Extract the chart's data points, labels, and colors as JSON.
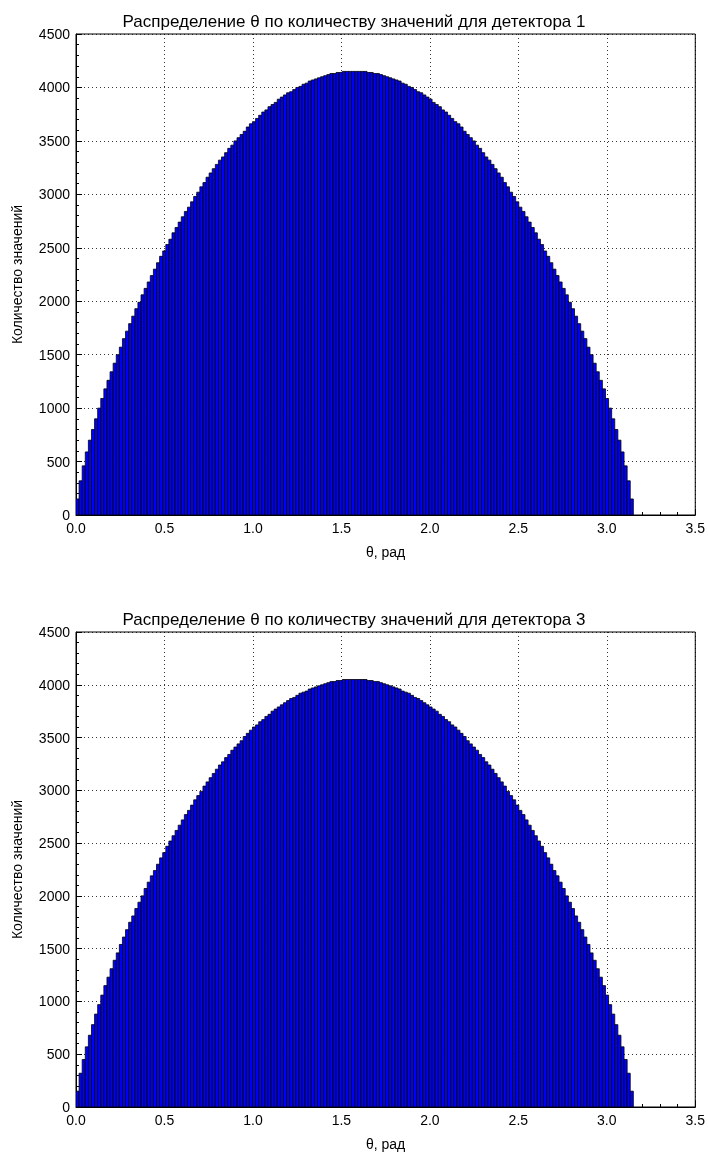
{
  "chart_data": [
    {
      "type": "histogram",
      "title": "Распределение θ по количеству значений для детектора 1",
      "xlabel": "θ, рад",
      "ylabel": "Количество значений",
      "color": "#0000ff",
      "bins": [
        0,
        0.0175,
        0.035,
        0.0525,
        0.07,
        0.0875,
        0.105,
        0.1225,
        0.14,
        0.1575,
        0.175,
        0.1925,
        0.21,
        0.2275,
        0.245,
        0.2625,
        0.28,
        0.2975,
        0.315,
        0.3325,
        0.35,
        0.3675,
        0.385,
        0.4025,
        0.42,
        0.4375,
        0.455,
        0.4725,
        0.49,
        0.5075,
        0.525,
        0.5425,
        0.56,
        0.5775,
        0.595,
        0.6125,
        0.63,
        0.6475,
        0.665,
        0.6825,
        0.7,
        0.7175,
        0.735,
        0.7525,
        0.77,
        0.7875,
        0.805,
        0.8225,
        0.84,
        0.8575,
        0.875,
        0.8925,
        0.91,
        0.9275,
        0.945,
        0.9625,
        0.98,
        0.9975,
        1.015,
        1.0325,
        1.05,
        1.0675,
        1.085,
        1.1025,
        1.12,
        1.1375,
        1.155,
        1.1725,
        1.19,
        1.2075,
        1.225,
        1.2425,
        1.26,
        1.2775,
        1.295,
        1.3125,
        1.33,
        1.3475,
        1.365,
        1.3825,
        1.4,
        1.4175,
        1.435,
        1.4525,
        1.47,
        1.4875,
        1.505,
        1.5225,
        1.54,
        1.5575,
        1.575,
        1.5925,
        1.61,
        1.6275,
        1.645,
        1.6625,
        1.68,
        1.6975,
        1.715,
        1.7325,
        1.75,
        1.7675,
        1.785,
        1.8025,
        1.82,
        1.8375,
        1.855,
        1.8725,
        1.89,
        1.9075,
        1.925,
        1.9425,
        1.96,
        1.9775,
        1.995,
        2.0125,
        2.03,
        2.0475,
        2.065,
        2.0825,
        2.1,
        2.1175,
        2.135,
        2.1525,
        2.17,
        2.1875,
        2.205,
        2.2225,
        2.24,
        2.2575,
        2.275,
        2.2925,
        2.31,
        2.3275,
        2.345,
        2.3625,
        2.38,
        2.3975,
        2.415,
        2.4325,
        2.45,
        2.4675,
        2.485,
        2.5025,
        2.52,
        2.5375,
        2.555,
        2.5725,
        2.59,
        2.6075,
        2.625,
        2.6425,
        2.66,
        2.6775,
        2.695,
        2.7125,
        2.73,
        2.7475,
        2.765,
        2.7825,
        2.8,
        2.8175,
        2.835,
        2.8525,
        2.87,
        2.8875,
        2.905,
        2.9225,
        2.94,
        2.9575,
        2.975,
        2.9925,
        3.01,
        3.0275,
        3.045,
        3.0625,
        3.08,
        3.0975,
        3.115,
        3.1325,
        3.15
      ],
      "values": [
        150,
        320,
        460,
        590,
        700,
        800,
        900,
        1000,
        1090,
        1180,
        1260,
        1340,
        1420,
        1500,
        1570,
        1650,
        1720,
        1790,
        1860,
        1930,
        1990,
        2060,
        2120,
        2180,
        2240,
        2300,
        2360,
        2420,
        2470,
        2530,
        2580,
        2640,
        2690,
        2740,
        2790,
        2840,
        2880,
        2930,
        2980,
        3020,
        3070,
        3110,
        3160,
        3200,
        3240,
        3280,
        3320,
        3350,
        3390,
        3430,
        3460,
        3500,
        3530,
        3560,
        3590,
        3630,
        3660,
        3680,
        3710,
        3740,
        3770,
        3790,
        3820,
        3840,
        3860,
        3890,
        3910,
        3930,
        3950,
        3960,
        3980,
        4000,
        4010,
        4030,
        4040,
        4060,
        4070,
        4080,
        4090,
        4100,
        4110,
        4120,
        4130,
        4130,
        4140,
        4140,
        4150,
        4150,
        4150,
        4150,
        4150,
        4150,
        4150,
        4150,
        4140,
        4140,
        4130,
        4130,
        4120,
        4110,
        4100,
        4090,
        4080,
        4070,
        4060,
        4040,
        4030,
        4010,
        4000,
        3980,
        3960,
        3950,
        3930,
        3910,
        3890,
        3860,
        3840,
        3820,
        3790,
        3770,
        3740,
        3710,
        3680,
        3660,
        3630,
        3590,
        3560,
        3530,
        3500,
        3460,
        3430,
        3390,
        3350,
        3320,
        3280,
        3240,
        3200,
        3160,
        3110,
        3070,
        3020,
        2980,
        2930,
        2880,
        2840,
        2790,
        2740,
        2690,
        2640,
        2580,
        2530,
        2470,
        2420,
        2360,
        2300,
        2240,
        2180,
        2120,
        2060,
        1990,
        1930,
        1860,
        1790,
        1720,
        1650,
        1570,
        1500,
        1420,
        1340,
        1260,
        1180,
        1090,
        1000,
        900,
        800,
        700,
        590,
        460,
        320,
        150
      ],
      "xlim": [
        0,
        3.5
      ],
      "xticks": [
        {
          "value": 0,
          "label": "0.0"
        },
        {
          "value": 0.5,
          "label": "0.5"
        },
        {
          "value": 1,
          "label": "1.0"
        },
        {
          "value": 1.5,
          "label": "1.5"
        },
        {
          "value": 2,
          "label": "2.0"
        },
        {
          "value": 2.5,
          "label": "2.5"
        },
        {
          "value": 3,
          "label": "3.0"
        },
        {
          "value": 3.5,
          "label": "3.5"
        }
      ],
      "ylim": [
        0,
        4500
      ],
      "yticks": [
        0,
        500,
        1000,
        1500,
        2000,
        2500,
        3000,
        3500,
        4000,
        4500
      ],
      "grid": true
    },
    {
      "type": "histogram",
      "title": "Распределение θ по количеству значений для детектора 3",
      "xlabel": "θ, рад",
      "ylabel": "Количество значений",
      "color": "#0000ff",
      "bins": [
        0,
        0.0175,
        0.035,
        0.0525,
        0.07,
        0.0875,
        0.105,
        0.1225,
        0.14,
        0.1575,
        0.175,
        0.1925,
        0.21,
        0.2275,
        0.245,
        0.2625,
        0.28,
        0.2975,
        0.315,
        0.3325,
        0.35,
        0.3675,
        0.385,
        0.4025,
        0.42,
        0.4375,
        0.455,
        0.4725,
        0.49,
        0.5075,
        0.525,
        0.5425,
        0.56,
        0.5775,
        0.595,
        0.6125,
        0.63,
        0.6475,
        0.665,
        0.6825,
        0.7,
        0.7175,
        0.735,
        0.7525,
        0.77,
        0.7875,
        0.805,
        0.8225,
        0.84,
        0.8575,
        0.875,
        0.8925,
        0.91,
        0.9275,
        0.945,
        0.9625,
        0.98,
        0.9975,
        1.015,
        1.0325,
        1.05,
        1.0675,
        1.085,
        1.1025,
        1.12,
        1.1375,
        1.155,
        1.1725,
        1.19,
        1.2075,
        1.225,
        1.2425,
        1.26,
        1.2775,
        1.295,
        1.3125,
        1.33,
        1.3475,
        1.365,
        1.3825,
        1.4,
        1.4175,
        1.435,
        1.4525,
        1.47,
        1.4875,
        1.505,
        1.5225,
        1.54,
        1.5575,
        1.575,
        1.5925,
        1.61,
        1.6275,
        1.645,
        1.6625,
        1.68,
        1.6975,
        1.715,
        1.7325,
        1.75,
        1.7675,
        1.785,
        1.8025,
        1.82,
        1.8375,
        1.855,
        1.8725,
        1.89,
        1.9075,
        1.925,
        1.9425,
        1.96,
        1.9775,
        1.995,
        2.0125,
        2.03,
        2.0475,
        2.065,
        2.0825,
        2.1,
        2.1175,
        2.135,
        2.1525,
        2.17,
        2.1875,
        2.205,
        2.2225,
        2.24,
        2.2575,
        2.275,
        2.2925,
        2.31,
        2.3275,
        2.345,
        2.3625,
        2.38,
        2.3975,
        2.415,
        2.4325,
        2.45,
        2.4675,
        2.485,
        2.5025,
        2.52,
        2.5375,
        2.555,
        2.5725,
        2.59,
        2.6075,
        2.625,
        2.6425,
        2.66,
        2.6775,
        2.695,
        2.7125,
        2.73,
        2.7475,
        2.765,
        2.7825,
        2.8,
        2.8175,
        2.835,
        2.8525,
        2.87,
        2.8875,
        2.905,
        2.9225,
        2.94,
        2.9575,
        2.975,
        2.9925,
        3.01,
        3.0275,
        3.045,
        3.0625,
        3.08,
        3.0975,
        3.115,
        3.1325,
        3.15
      ],
      "values": [
        150,
        320,
        450,
        570,
        680,
        780,
        880,
        970,
        1060,
        1150,
        1230,
        1310,
        1390,
        1460,
        1540,
        1610,
        1680,
        1750,
        1810,
        1880,
        1940,
        2000,
        2070,
        2130,
        2190,
        2240,
        2300,
        2360,
        2410,
        2470,
        2520,
        2570,
        2620,
        2670,
        2720,
        2770,
        2810,
        2860,
        2910,
        2950,
        2990,
        3040,
        3080,
        3120,
        3160,
        3200,
        3240,
        3270,
        3310,
        3340,
        3380,
        3410,
        3440,
        3470,
        3510,
        3540,
        3570,
        3600,
        3620,
        3650,
        3670,
        3700,
        3720,
        3750,
        3770,
        3790,
        3810,
        3830,
        3850,
        3870,
        3880,
        3900,
        3920,
        3930,
        3940,
        3960,
        3970,
        3980,
        3990,
        4000,
        4010,
        4020,
        4030,
        4030,
        4040,
        4040,
        4050,
        4050,
        4050,
        4050,
        4050,
        4050,
        4050,
        4050,
        4040,
        4040,
        4030,
        4030,
        4020,
        4010,
        4000,
        3990,
        3980,
        3970,
        3960,
        3940,
        3930,
        3920,
        3900,
        3880,
        3870,
        3850,
        3830,
        3810,
        3790,
        3770,
        3750,
        3720,
        3700,
        3670,
        3650,
        3620,
        3600,
        3570,
        3540,
        3510,
        3470,
        3440,
        3410,
        3380,
        3340,
        3310,
        3270,
        3240,
        3200,
        3160,
        3120,
        3080,
        3040,
        2990,
        2950,
        2910,
        2860,
        2810,
        2770,
        2720,
        2670,
        2620,
        2570,
        2520,
        2470,
        2410,
        2360,
        2300,
        2240,
        2190,
        2130,
        2070,
        2000,
        1940,
        1880,
        1810,
        1750,
        1680,
        1610,
        1540,
        1460,
        1390,
        1310,
        1230,
        1150,
        1060,
        970,
        880,
        780,
        680,
        570,
        450,
        320,
        150
      ],
      "xlim": [
        0,
        3.5
      ],
      "xticks": [
        {
          "value": 0,
          "label": "0.0"
        },
        {
          "value": 0.5,
          "label": "0.5"
        },
        {
          "value": 1,
          "label": "1.0"
        },
        {
          "value": 1.5,
          "label": "1.5"
        },
        {
          "value": 2,
          "label": "2.0"
        },
        {
          "value": 2.5,
          "label": "2.5"
        },
        {
          "value": 3,
          "label": "3.0"
        },
        {
          "value": 3.5,
          "label": "3.5"
        }
      ],
      "ylim": [
        0,
        4500
      ],
      "yticks": [
        0,
        500,
        1000,
        1500,
        2000,
        2500,
        3000,
        3500,
        4000,
        4500
      ],
      "grid": true
    }
  ]
}
